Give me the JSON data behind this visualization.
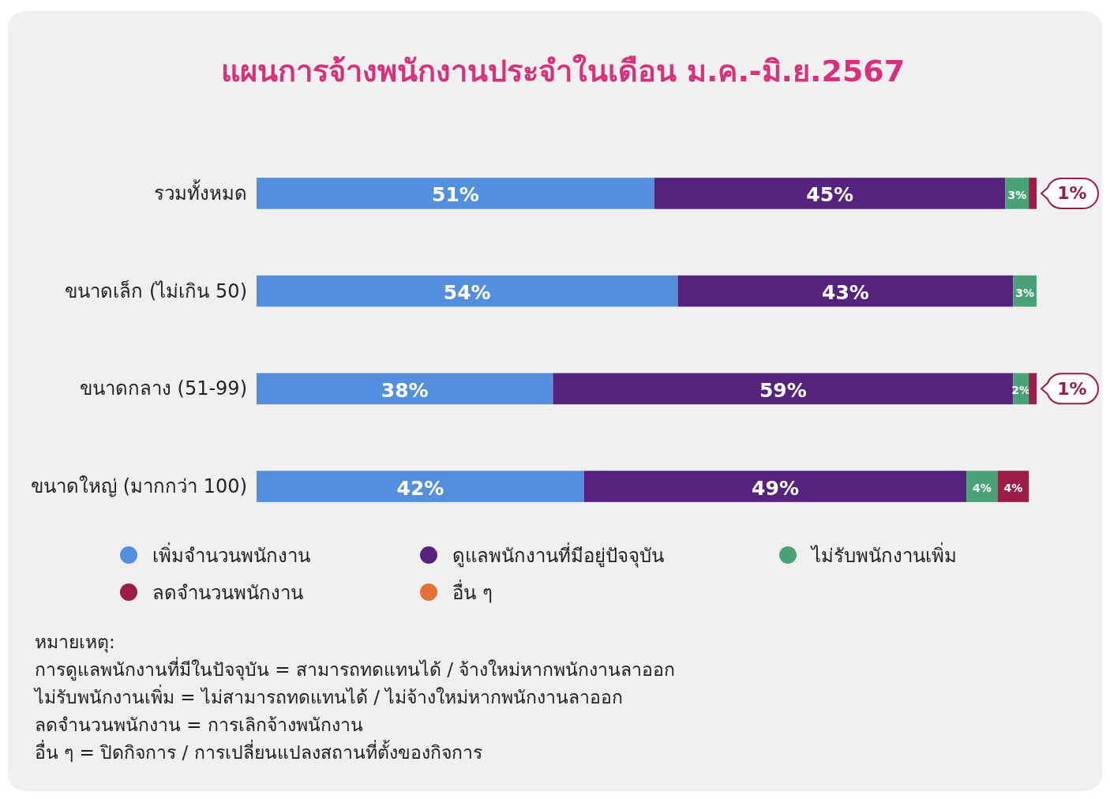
{
  "chart_data": {
    "type": "bar",
    "orientation": "horizontal",
    "stacked": true,
    "title": "แผนการจ้างพนักงานประจำในเดือน ม.ค.-มิ.ย.2567",
    "categories": [
      "รวมทั้งหมด",
      "ขนาดเล็ก (ไม่เกิน 50)",
      "ขนาดกลาง (51-99)",
      "ขนาดใหญ่ (มากกว่า 100)"
    ],
    "series": [
      {
        "name": "เพิ่มจำนวนพนักงาน",
        "color": "#538fdc",
        "values": [
          51,
          54,
          38,
          42
        ],
        "value_labels": [
          "51%",
          "54%",
          "38%",
          "42%"
        ]
      },
      {
        "name": "ดูแลพนักงานที่มีอยู่ปัจจุบัน",
        "color": "#55237d",
        "values": [
          45,
          43,
          59,
          49
        ],
        "value_labels": [
          "45%",
          "43%",
          "59%",
          "49%"
        ]
      },
      {
        "name": "ไม่รับพนักงานเพิ่ม",
        "color": "#4aa279",
        "values": [
          3,
          3,
          2,
          4
        ],
        "value_labels": [
          "3%",
          "3%",
          "2%",
          "4%"
        ]
      },
      {
        "name": "ลดจำนวนพนักงาน",
        "color": "#9b1c45",
        "values": [
          1,
          0,
          1,
          4
        ],
        "value_labels": [
          "1%",
          null,
          "1%",
          "4%"
        ]
      },
      {
        "name": "อื่น ๆ",
        "color": "#e4703c",
        "values": [
          0,
          0,
          0,
          0
        ],
        "value_labels": [
          null,
          null,
          null,
          null
        ]
      }
    ],
    "legend": "bottom",
    "tick_labels": "y",
    "annotations": [
      "หมายเหตุ:",
      "การดูแลพนักงานที่มีในปัจจุบัน = สามารถทดแทนได้ / จ้างใหม่หากพนักงานลาออก",
      "ไม่รับพนักงานเพิ่ม = ไม่สามารถทดแทนได้ / ไม่จ้างใหม่หากพนักงานลาออก",
      "ลดจำนวนพนักงาน = การเลิกจ้างพนักงาน",
      "อื่น ๆ = ปิดกิจการ / การเปลี่ยนแปลงสถานที่ตั้งของกิจการ"
    ]
  }
}
